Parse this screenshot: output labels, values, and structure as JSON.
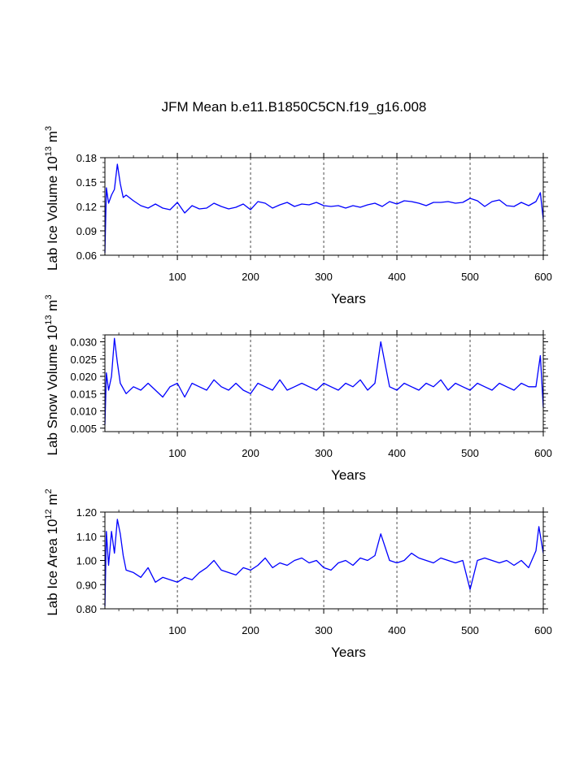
{
  "title": "JFM Mean b.e11.B1850C5CN.f19_g16.008",
  "colors": {
    "line": "#0000ff",
    "axis": "#000000",
    "grid": "#000000",
    "background": "#ffffff"
  },
  "chart_data": [
    {
      "type": "line",
      "ylabel_main": "Lab Ice Volume 10",
      "ylabel_sup": "13",
      "ylabel_unit": "m",
      "ylabel_unit_sup": "3",
      "xlabel": "Years",
      "xlim": [
        1,
        600
      ],
      "ylim": [
        0.06,
        0.18
      ],
      "yticks": [
        0.06,
        0.09,
        0.12,
        0.15,
        0.18
      ],
      "ytick_labels": [
        "0.06",
        "0.09",
        "0.12",
        "0.15",
        "0.18"
      ],
      "xticks": [
        100,
        200,
        300,
        400,
        500,
        600
      ],
      "xtick_labels": [
        "100",
        "200",
        "300",
        "400",
        "500",
        "600"
      ],
      "grid_x": [
        100,
        200,
        300,
        400,
        500
      ],
      "series": [
        {
          "name": "Lab Ice Volume",
          "x": [
            1,
            3,
            6,
            10,
            14,
            18,
            22,
            26,
            30,
            40,
            50,
            60,
            70,
            80,
            90,
            100,
            110,
            120,
            130,
            140,
            150,
            160,
            170,
            180,
            190,
            200,
            210,
            220,
            230,
            240,
            250,
            260,
            270,
            280,
            290,
            300,
            310,
            320,
            330,
            340,
            350,
            360,
            370,
            380,
            390,
            400,
            410,
            420,
            430,
            440,
            450,
            460,
            470,
            480,
            490,
            500,
            510,
            520,
            530,
            540,
            550,
            560,
            570,
            580,
            590,
            596,
            600
          ],
          "values": [
            0.063,
            0.143,
            0.124,
            0.134,
            0.141,
            0.172,
            0.148,
            0.131,
            0.134,
            0.127,
            0.121,
            0.118,
            0.123,
            0.118,
            0.116,
            0.125,
            0.112,
            0.121,
            0.117,
            0.118,
            0.124,
            0.12,
            0.117,
            0.119,
            0.123,
            0.116,
            0.126,
            0.124,
            0.118,
            0.122,
            0.125,
            0.12,
            0.123,
            0.122,
            0.125,
            0.121,
            0.12,
            0.121,
            0.118,
            0.121,
            0.119,
            0.122,
            0.124,
            0.12,
            0.126,
            0.123,
            0.127,
            0.126,
            0.124,
            0.121,
            0.125,
            0.125,
            0.126,
            0.124,
            0.125,
            0.13,
            0.127,
            0.12,
            0.126,
            0.128,
            0.121,
            0.12,
            0.125,
            0.121,
            0.126,
            0.137,
            0.104
          ]
        }
      ]
    },
    {
      "type": "line",
      "ylabel_main": "Lab Snow Volume 10",
      "ylabel_sup": "13",
      "ylabel_unit": "m",
      "ylabel_unit_sup": "3",
      "xlabel": "Years",
      "xlim": [
        1,
        600
      ],
      "ylim": [
        0.004,
        0.032
      ],
      "yticks": [
        0.005,
        0.01,
        0.015,
        0.02,
        0.025,
        0.03
      ],
      "ytick_labels": [
        "0.005",
        "0.010",
        "0.015",
        "0.020",
        "0.025",
        "0.030"
      ],
      "xticks": [
        100,
        200,
        300,
        400,
        500,
        600
      ],
      "xtick_labels": [
        "100",
        "200",
        "300",
        "400",
        "500",
        "600"
      ],
      "grid_x": [
        100,
        200,
        300,
        400,
        500
      ],
      "series": [
        {
          "name": "Lab Snow Volume",
          "x": [
            1,
            3,
            6,
            10,
            14,
            18,
            22,
            30,
            40,
            50,
            60,
            70,
            80,
            90,
            100,
            110,
            120,
            130,
            140,
            150,
            160,
            170,
            180,
            190,
            200,
            210,
            220,
            230,
            240,
            250,
            260,
            270,
            280,
            290,
            300,
            310,
            320,
            330,
            340,
            350,
            360,
            370,
            378,
            390,
            400,
            410,
            420,
            430,
            440,
            450,
            460,
            470,
            480,
            490,
            500,
            510,
            520,
            530,
            540,
            550,
            560,
            570,
            580,
            590,
            596,
            600
          ],
          "values": [
            0.006,
            0.021,
            0.016,
            0.02,
            0.031,
            0.024,
            0.018,
            0.015,
            0.017,
            0.016,
            0.018,
            0.016,
            0.014,
            0.017,
            0.018,
            0.014,
            0.018,
            0.017,
            0.016,
            0.019,
            0.017,
            0.016,
            0.018,
            0.016,
            0.015,
            0.018,
            0.017,
            0.016,
            0.019,
            0.016,
            0.017,
            0.018,
            0.017,
            0.016,
            0.018,
            0.017,
            0.016,
            0.018,
            0.017,
            0.019,
            0.016,
            0.018,
            0.03,
            0.017,
            0.016,
            0.018,
            0.017,
            0.016,
            0.018,
            0.017,
            0.019,
            0.016,
            0.018,
            0.017,
            0.016,
            0.018,
            0.017,
            0.016,
            0.018,
            0.017,
            0.016,
            0.018,
            0.017,
            0.017,
            0.026,
            0.011
          ]
        }
      ]
    },
    {
      "type": "line",
      "ylabel_main": "Lab Ice Area 10",
      "ylabel_sup": "12",
      "ylabel_unit": "m",
      "ylabel_unit_sup": "2",
      "xlabel": "Years",
      "xlim": [
        1,
        600
      ],
      "ylim": [
        0.8,
        1.2
      ],
      "yticks": [
        0.8,
        0.9,
        1.0,
        1.1,
        1.2
      ],
      "ytick_labels": [
        "0.80",
        "0.90",
        "1.00",
        "1.10",
        "1.20"
      ],
      "xticks": [
        100,
        200,
        300,
        400,
        500,
        600
      ],
      "xtick_labels": [
        "100",
        "200",
        "300",
        "400",
        "500",
        "600"
      ],
      "grid_x": [
        100,
        200,
        300,
        400,
        500
      ],
      "series": [
        {
          "name": "Lab Ice Area",
          "x": [
            1,
            3,
            6,
            10,
            14,
            18,
            22,
            26,
            30,
            40,
            50,
            60,
            70,
            80,
            90,
            100,
            110,
            120,
            130,
            140,
            150,
            160,
            170,
            180,
            190,
            200,
            210,
            220,
            230,
            240,
            250,
            260,
            270,
            280,
            290,
            300,
            310,
            320,
            330,
            340,
            350,
            360,
            370,
            378,
            390,
            400,
            410,
            420,
            430,
            440,
            450,
            460,
            470,
            480,
            490,
            500,
            510,
            520,
            530,
            540,
            550,
            560,
            570,
            580,
            590,
            594,
            600
          ],
          "values": [
            0.81,
            1.12,
            0.98,
            1.12,
            1.03,
            1.17,
            1.11,
            1.02,
            0.96,
            0.95,
            0.93,
            0.97,
            0.91,
            0.93,
            0.92,
            0.91,
            0.93,
            0.92,
            0.95,
            0.97,
            1.0,
            0.96,
            0.95,
            0.94,
            0.97,
            0.96,
            0.98,
            1.01,
            0.97,
            0.99,
            0.98,
            1.0,
            1.01,
            0.99,
            1.0,
            0.97,
            0.96,
            0.99,
            1.0,
            0.98,
            1.01,
            1.0,
            1.02,
            1.11,
            1.0,
            0.99,
            1.0,
            1.03,
            1.01,
            1.0,
            0.99,
            1.01,
            1.0,
            0.99,
            1.0,
            0.88,
            1.0,
            1.01,
            1.0,
            0.99,
            1.0,
            0.98,
            1.0,
            0.97,
            1.04,
            1.14,
            1.03
          ]
        }
      ]
    }
  ]
}
